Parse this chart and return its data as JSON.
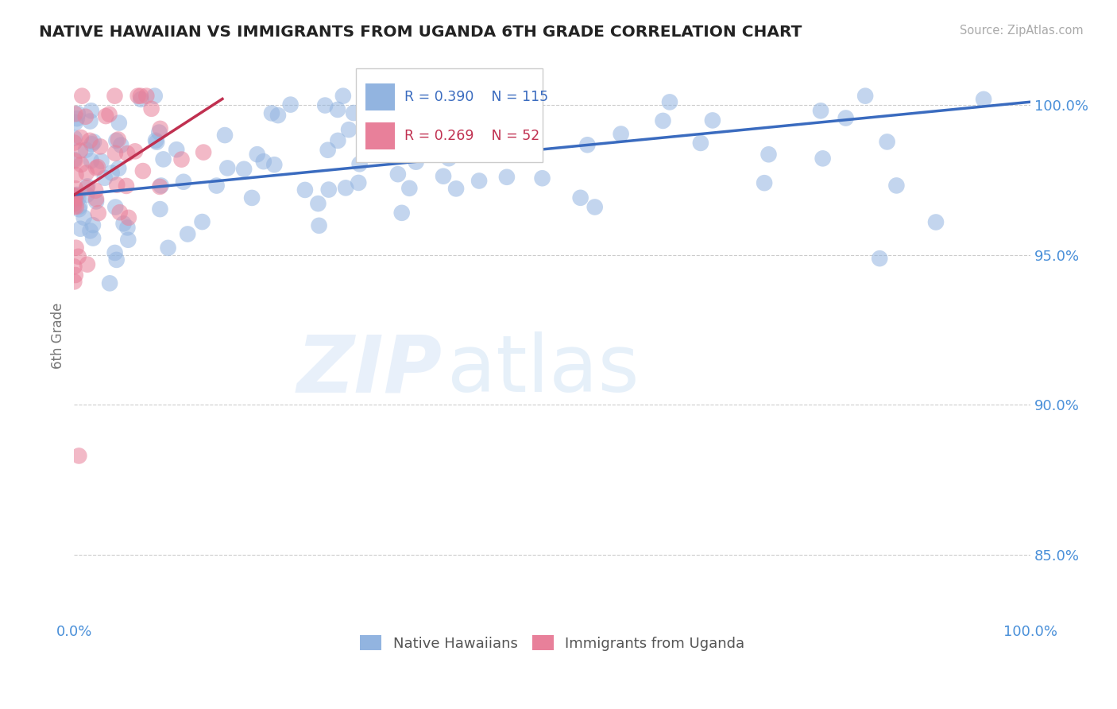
{
  "title": "NATIVE HAWAIIAN VS IMMIGRANTS FROM UGANDA 6TH GRADE CORRELATION CHART",
  "source": "Source: ZipAtlas.com",
  "ylabel": "6th Grade",
  "xlim": [
    0.0,
    1.0
  ],
  "ylim": [
    0.828,
    1.018
  ],
  "yticks": [
    0.85,
    0.9,
    0.95,
    1.0
  ],
  "ytick_labels": [
    "85.0%",
    "90.0%",
    "95.0%",
    "100.0%"
  ],
  "xticks": [
    0.0,
    0.1,
    0.2,
    0.3,
    0.4,
    0.5,
    0.6,
    0.7,
    0.8,
    0.9,
    1.0
  ],
  "xtick_labels": [
    "0.0%",
    "",
    "",
    "",
    "",
    "",
    "",
    "",
    "",
    "",
    "100.0%"
  ],
  "blue_R": 0.39,
  "blue_N": 115,
  "pink_R": 0.269,
  "pink_N": 52,
  "blue_color": "#92b4e0",
  "pink_color": "#e8809a",
  "blue_line_color": "#3a6bbf",
  "pink_line_color": "#c03050",
  "blue_line_y0": 0.97,
  "blue_line_y1": 1.001,
  "pink_line_x0": 0.0,
  "pink_line_x1": 0.155,
  "pink_line_y0": 0.97,
  "pink_line_y1": 1.002,
  "legend_label_blue": "Native Hawaiians",
  "legend_label_pink": "Immigrants from Uganda",
  "watermark_zip": "ZIP",
  "watermark_atlas": "atlas",
  "background_color": "#ffffff",
  "grid_color": "#cccccc",
  "title_color": "#222222",
  "axis_label_color": "#777777",
  "tick_label_color": "#4a90d9",
  "source_color": "#aaaaaa"
}
